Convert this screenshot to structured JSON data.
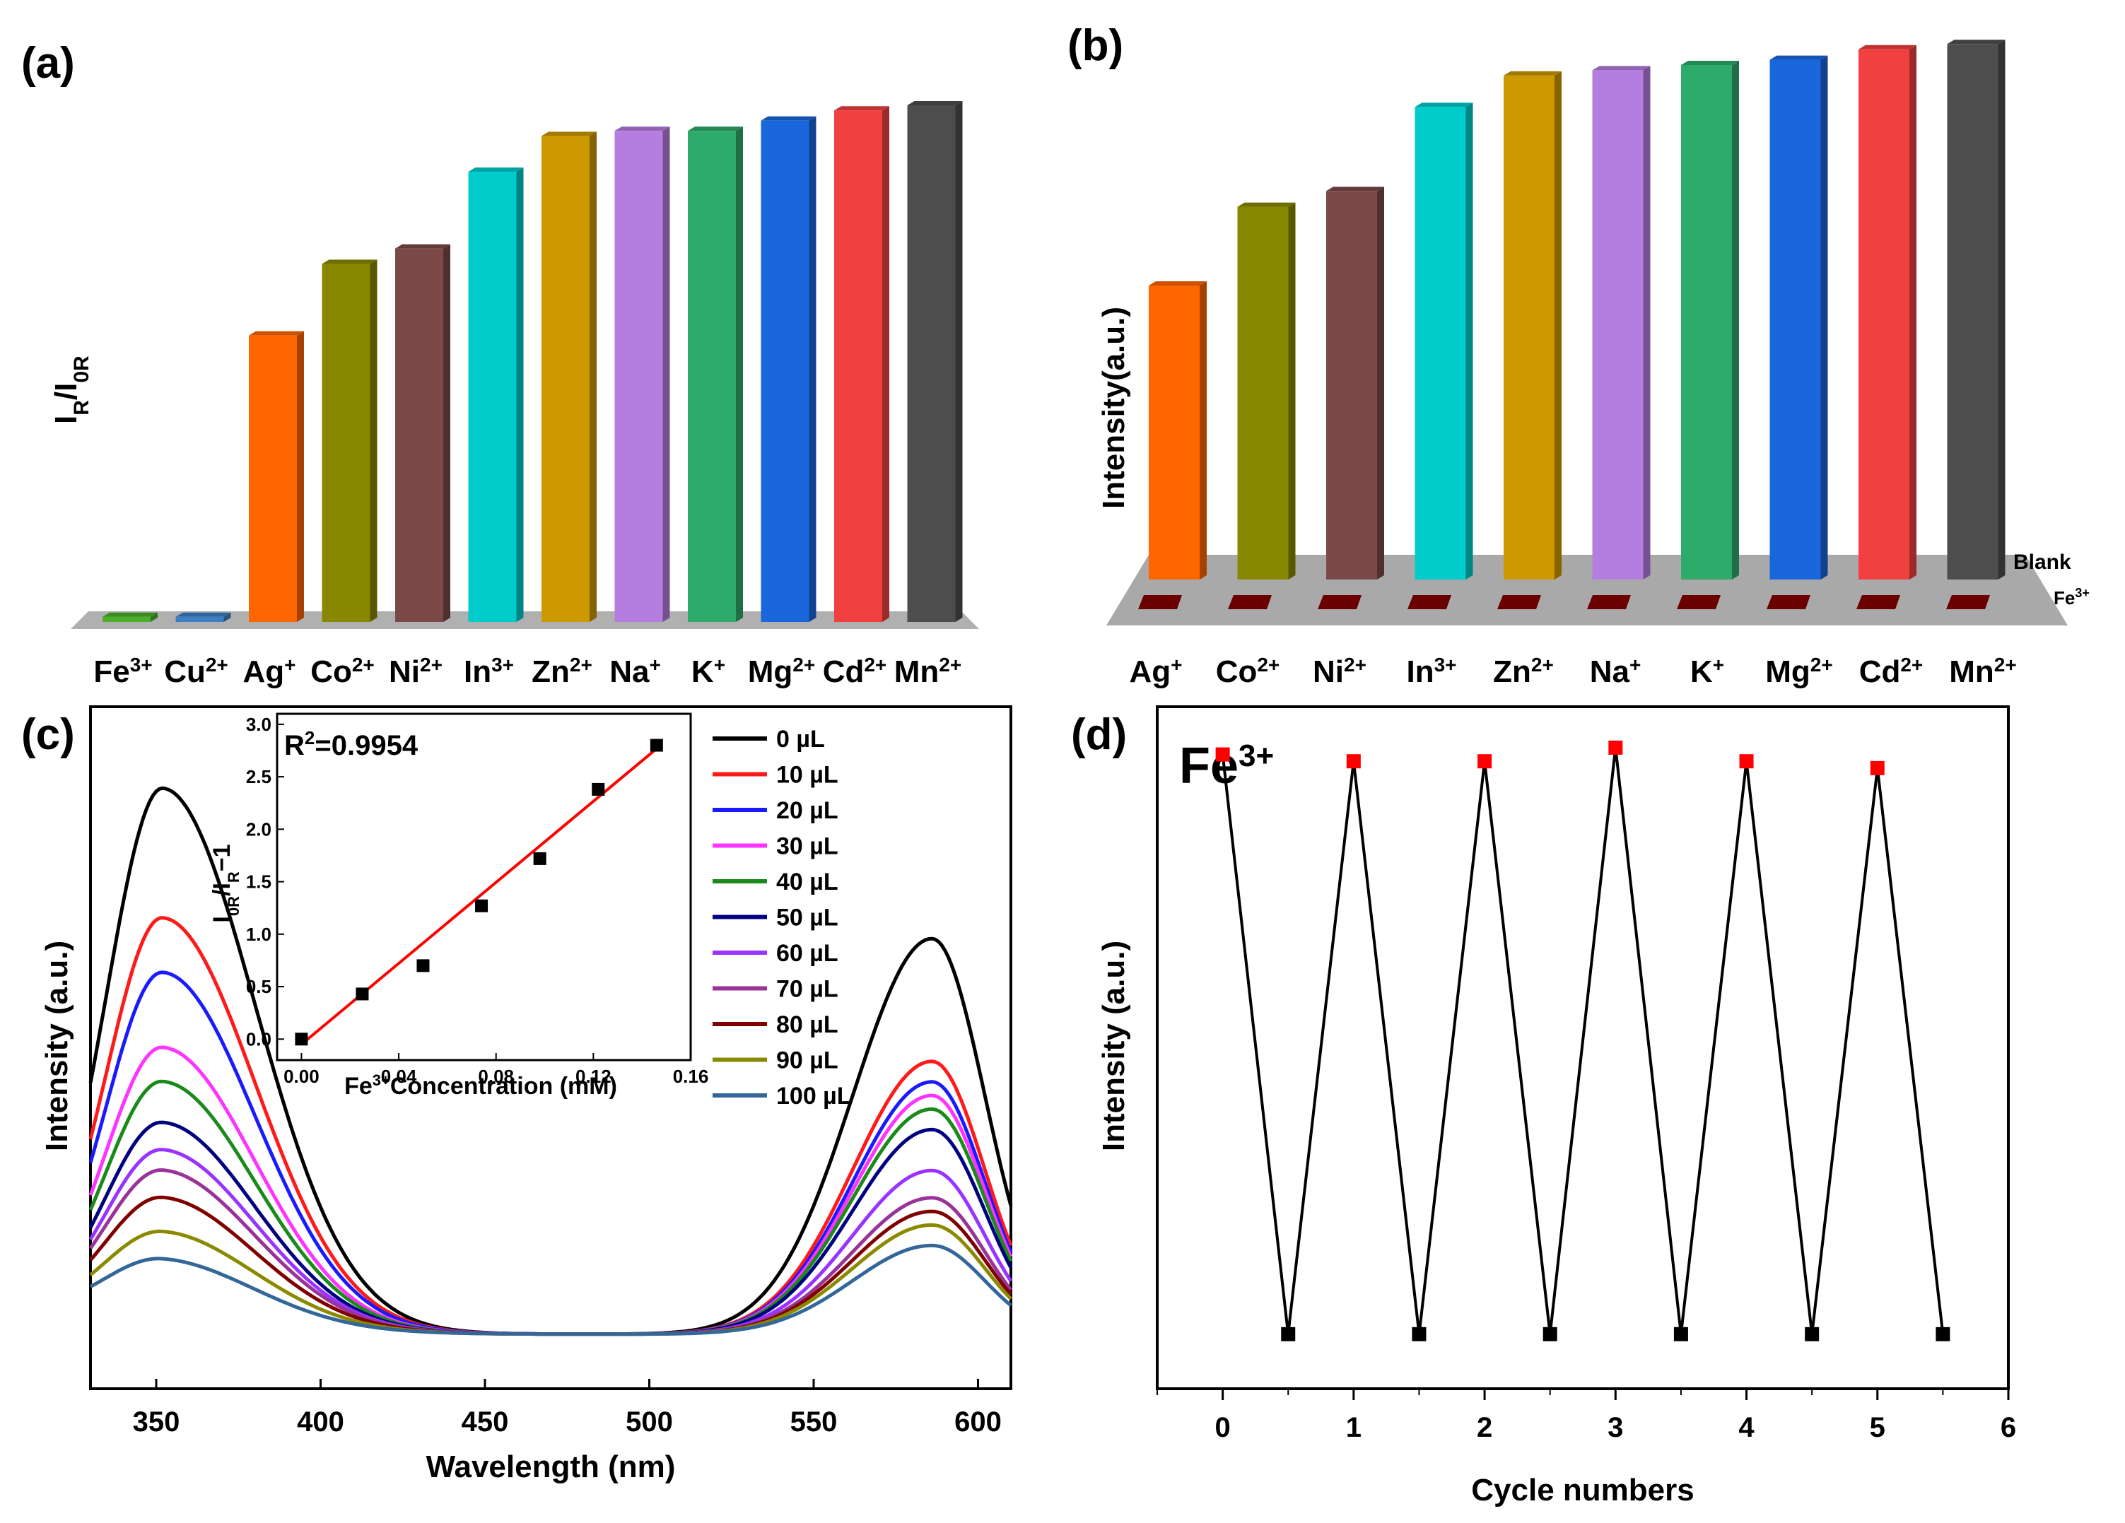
{
  "figure": {
    "panel_labels": [
      "(a)",
      "(b)",
      "(c)",
      "(d)"
    ]
  },
  "chart_data": [
    {
      "id": "a",
      "type": "bar",
      "style": "3d",
      "ylabel": "I",
      "ylabel_sub1": "R",
      "ylabel_mid": "/I",
      "ylabel_sub2": "0R",
      "categories": [
        {
          "base": "Fe",
          "sup": "3+"
        },
        {
          "base": "Cu",
          "sup": "2+"
        },
        {
          "base": "Ag",
          "sup": "+"
        },
        {
          "base": "Co",
          "sup": "2+"
        },
        {
          "base": "Ni",
          "sup": "2+"
        },
        {
          "base": "In",
          "sup": "3+"
        },
        {
          "base": "Zn",
          "sup": "2+"
        },
        {
          "base": "Na",
          "sup": "+"
        },
        {
          "base": "K",
          "sup": "+"
        },
        {
          "base": "Mg",
          "sup": "2+"
        },
        {
          "base": "Cd",
          "sup": "2+"
        },
        {
          "base": "Mn",
          "sup": "2+"
        }
      ],
      "values": [
        0.01,
        0.01,
        0.56,
        0.7,
        0.73,
        0.88,
        0.95,
        0.96,
        0.96,
        0.98,
        1.0,
        1.01
      ],
      "ylim": [
        0,
        1.05
      ],
      "colors": [
        "#4caf2a",
        "#3d7fc4",
        "#ff6600",
        "#888800",
        "#7b4a48",
        "#00cccc",
        "#cc9900",
        "#b57de0",
        "#2eab6a",
        "#1a66dd",
        "#f04040",
        "#4d4d4d"
      ]
    },
    {
      "id": "b",
      "type": "bar",
      "style": "3d",
      "ylabel": "Intensity(a.u.)",
      "categories": [
        {
          "base": "Ag",
          "sup": "+"
        },
        {
          "base": "Co",
          "sup": "2+"
        },
        {
          "base": "Ni",
          "sup": "2+"
        },
        {
          "base": "In",
          "sup": "3+"
        },
        {
          "base": "Zn",
          "sup": "2+"
        },
        {
          "base": "Na",
          "sup": "+"
        },
        {
          "base": "K",
          "sup": "+"
        },
        {
          "base": "Mg",
          "sup": "2+"
        },
        {
          "base": "Cd",
          "sup": "2+"
        },
        {
          "base": "Mn",
          "sup": "2+"
        }
      ],
      "series": [
        {
          "name": "Blank",
          "values": [
            0.56,
            0.71,
            0.74,
            0.9,
            0.96,
            0.97,
            0.98,
            0.99,
            1.01,
            1.02
          ]
        },
        {
          "name": "Fe",
          "name_sup": "3+",
          "values": [
            0.02,
            0.02,
            0.02,
            0.02,
            0.02,
            0.02,
            0.02,
            0.02,
            0.02,
            0.02
          ]
        }
      ],
      "series_labels": {
        "blank": "Blank",
        "fe_base": "Fe",
        "fe_sup": "3+"
      },
      "ylim": [
        0,
        1.05
      ],
      "colors": [
        "#ff6600",
        "#888800",
        "#7b4a48",
        "#00cccc",
        "#cc9900",
        "#b57de0",
        "#2eab6a",
        "#1a66dd",
        "#f04040",
        "#4d4d4d"
      ],
      "fe_color": "#6b0000"
    },
    {
      "id": "c",
      "type": "line",
      "xlabel": "Wavelength (nm)",
      "ylabel": "Intensity (a.u.)",
      "xlim": [
        330,
        610
      ],
      "ylim": [
        0,
        1.0
      ],
      "xticks": [
        350,
        400,
        450,
        500,
        550,
        600
      ],
      "peaks": {
        "p1_center": 352,
        "p1_sigma_left": 17,
        "p1_sigma_right": 28,
        "p2_center": 586,
        "p2_sigma_left": 24,
        "p2_sigma_right": 16
      },
      "series": [
        {
          "name": "0 µL",
          "color": "#000000",
          "a1": 0.77,
          "a2": 0.58
        },
        {
          "name": "10 µL",
          "color": "#ff1a1a",
          "a1": 0.58,
          "a2": 0.4
        },
        {
          "name": "20 µL",
          "color": "#1a1aff",
          "a1": 0.5,
          "a2": 0.37
        },
        {
          "name": "30 µL",
          "color": "#ff33ff",
          "a1": 0.39,
          "a2": 0.35
        },
        {
          "name": "40 µL",
          "color": "#1a8a1a",
          "a1": 0.34,
          "a2": 0.33
        },
        {
          "name": "50 µL",
          "color": "#000080",
          "a1": 0.28,
          "a2": 0.3
        },
        {
          "name": "60 µL",
          "color": "#9933ff",
          "a1": 0.24,
          "a2": 0.24
        },
        {
          "name": "70 µL",
          "color": "#993399",
          "a1": 0.21,
          "a2": 0.2
        },
        {
          "name": "80 µL",
          "color": "#800000",
          "a1": 0.17,
          "a2": 0.18
        },
        {
          "name": "90 µL",
          "color": "#8a8a00",
          "a1": 0.12,
          "a2": 0.16
        },
        {
          "name": "100 µL",
          "color": "#336699",
          "a1": 0.08,
          "a2": 0.13
        }
      ],
      "inset": {
        "type": "scatter",
        "annotation_r": "R",
        "annotation_sup": "2",
        "annotation_value": "=0.9954",
        "xlabel_base": "Fe",
        "xlabel_sup": "3+",
        "xlabel_rest": "Concentration (mM)",
        "ylabel": "I0R/IR−1",
        "ylabel_parts": {
          "i1": "I",
          "s1": "0R",
          "mid": "/I",
          "s2": "R",
          "end": "−1"
        },
        "xlim": [
          -0.01,
          0.16
        ],
        "ylim": [
          -0.2,
          3.1
        ],
        "xticks": [
          "0.00",
          "0.04",
          "0.08",
          "0.12",
          "0.16"
        ],
        "xtick_values": [
          0.0,
          0.04,
          0.08,
          0.12,
          0.16
        ],
        "yticks": [
          "0.0",
          "0.5",
          "1.0",
          "1.5",
          "2.0",
          "2.5",
          "3.0"
        ],
        "ytick_values": [
          0.0,
          0.5,
          1.0,
          1.5,
          2.0,
          2.5,
          3.0
        ],
        "x": [
          0.0,
          0.025,
          0.05,
          0.074,
          0.098,
          0.122,
          0.146
        ],
        "y": [
          0.0,
          0.43,
          0.7,
          1.27,
          1.72,
          2.38,
          2.8
        ],
        "fit": {
          "slope": 19.3,
          "intercept": -0.05,
          "x_from": 0.0,
          "x_to": 0.146,
          "color": "#ff0000"
        }
      }
    },
    {
      "id": "d",
      "type": "line",
      "title_base": "Fe",
      "title_sup": "3+",
      "xlabel": "Cycle numbers",
      "ylabel": "Intensity (a.u.)",
      "xlim": [
        -0.5,
        6
      ],
      "ylim": [
        0,
        1.0
      ],
      "xticks": [
        "0",
        "1",
        "2",
        "3",
        "4",
        "5",
        "6"
      ],
      "xtick_values": [
        0,
        1,
        2,
        3,
        4,
        5,
        6
      ],
      "x": [
        0,
        0.5,
        1,
        1.5,
        2,
        2.5,
        3,
        3.5,
        4,
        4.5,
        5,
        5.5
      ],
      "y": [
        0.93,
        0.08,
        0.92,
        0.08,
        0.92,
        0.08,
        0.94,
        0.08,
        0.92,
        0.08,
        0.91,
        0.08
      ],
      "high_color": "#ff0000",
      "low_color": "#000000"
    }
  ]
}
